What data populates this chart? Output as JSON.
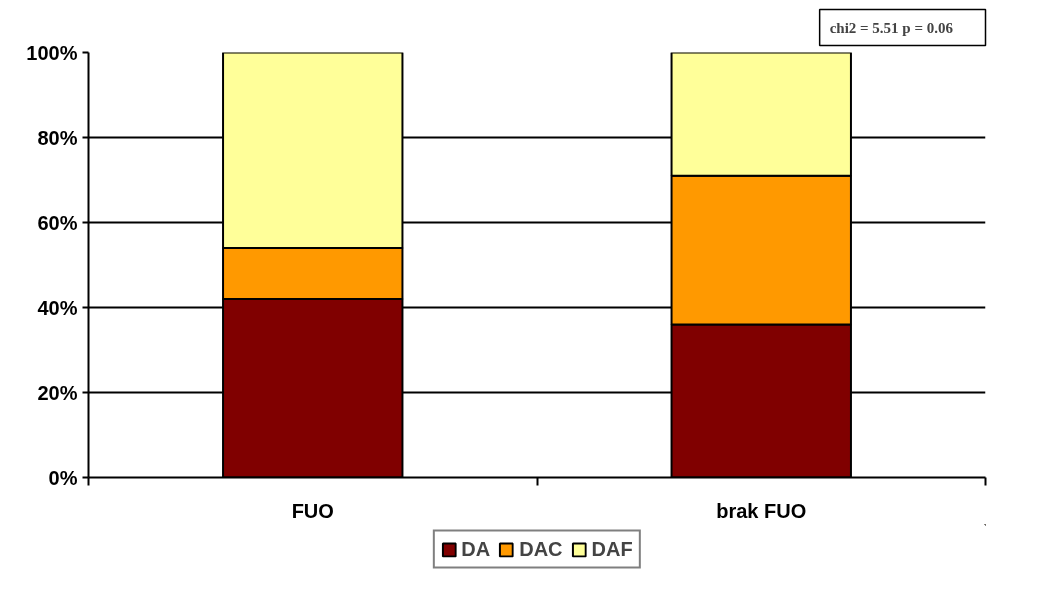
{
  "chart_data": {
    "type": "bar",
    "stacked": true,
    "categories": [
      "FUO",
      "brak FUO"
    ],
    "series": [
      {
        "name": "DA",
        "color": "#800000",
        "values": [
          42,
          36
        ]
      },
      {
        "name": "DAC",
        "color": "#ff9900",
        "values": [
          12,
          35
        ]
      },
      {
        "name": "DAF",
        "color": "#ffff99",
        "values": [
          46,
          29
        ]
      }
    ],
    "ylim": [
      0,
      100
    ],
    "yticks": [
      {
        "value": 0,
        "label": "0%"
      },
      {
        "value": 20,
        "label": "20%"
      },
      {
        "value": 40,
        "label": "40%"
      },
      {
        "value": 60,
        "label": "60%"
      },
      {
        "value": 80,
        "label": "80%"
      },
      {
        "value": 100,
        "label": "100%"
      }
    ],
    "grid": "y",
    "legend": "bottom",
    "annotations": [
      "chi2 = 5.51       p = 0.06"
    ]
  }
}
